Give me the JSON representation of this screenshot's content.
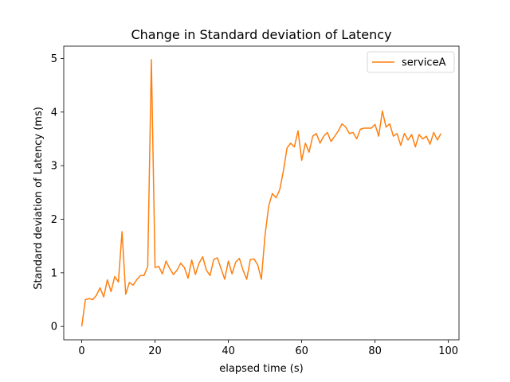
{
  "chart_data": {
    "type": "line",
    "title": "Change in Standard deviation of Latency",
    "xlabel": "elapsed time (s)",
    "ylabel": "Standard deviation of Latency (ms)",
    "xlim": [
      -4.9,
      102.9
    ],
    "ylim": [
      -0.25,
      5.23
    ],
    "xticks": [
      0,
      20,
      40,
      60,
      80,
      100
    ],
    "yticks": [
      0,
      1,
      2,
      3,
      4,
      5
    ],
    "grid": false,
    "legend_position": "top-right",
    "series": [
      {
        "name": "serviceA",
        "color": "#ff7f0e",
        "x": [
          0,
          1,
          2,
          3,
          4,
          5,
          6,
          7,
          8,
          9,
          10,
          11,
          12,
          13,
          14,
          15,
          16,
          17,
          18,
          19,
          20,
          21,
          22,
          23,
          24,
          25,
          26,
          27,
          28,
          29,
          30,
          31,
          32,
          33,
          34,
          35,
          36,
          37,
          38,
          39,
          40,
          41,
          42,
          43,
          44,
          45,
          46,
          47,
          48,
          49,
          50,
          51,
          52,
          53,
          54,
          55,
          56,
          57,
          58,
          59,
          60,
          61,
          62,
          63,
          64,
          65,
          66,
          67,
          68,
          69,
          70,
          71,
          72,
          73,
          74,
          75,
          76,
          77,
          78,
          79,
          80,
          81,
          82,
          83,
          84,
          85,
          86,
          87,
          88,
          89,
          90,
          91,
          92,
          93,
          94,
          95,
          96,
          97,
          98
        ],
        "values": [
          0.0,
          0.5,
          0.52,
          0.5,
          0.58,
          0.72,
          0.55,
          0.87,
          0.65,
          0.93,
          0.83,
          1.77,
          0.6,
          0.82,
          0.77,
          0.87,
          0.95,
          0.95,
          1.12,
          4.98,
          1.1,
          1.12,
          0.98,
          1.22,
          1.08,
          0.97,
          1.05,
          1.18,
          1.1,
          0.9,
          1.24,
          0.97,
          1.18,
          1.3,
          1.05,
          0.95,
          1.25,
          1.28,
          1.08,
          0.88,
          1.22,
          0.98,
          1.2,
          1.27,
          1.05,
          0.88,
          1.25,
          1.26,
          1.15,
          0.88,
          1.7,
          2.25,
          2.48,
          2.4,
          2.55,
          2.9,
          3.33,
          3.42,
          3.35,
          3.65,
          3.1,
          3.42,
          3.25,
          3.55,
          3.6,
          3.42,
          3.55,
          3.62,
          3.45,
          3.55,
          3.65,
          3.78,
          3.72,
          3.6,
          3.62,
          3.5,
          3.68,
          3.7,
          3.7,
          3.7,
          3.77,
          3.55,
          4.02,
          3.72,
          3.78,
          3.55,
          3.6,
          3.38,
          3.6,
          3.48,
          3.58,
          3.35,
          3.58,
          3.5,
          3.55,
          3.4,
          3.62,
          3.48,
          3.6
        ]
      }
    ]
  }
}
